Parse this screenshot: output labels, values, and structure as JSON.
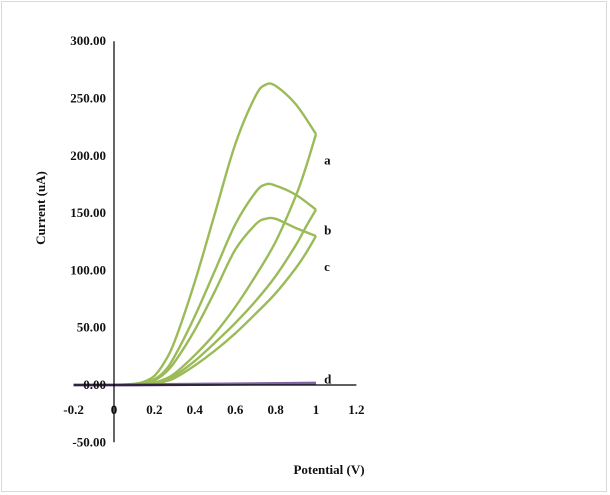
{
  "chart_data": {
    "type": "line",
    "title": "",
    "xlabel": "Potential (V)",
    "ylabel": "Current  (uA)",
    "xlim": [
      -0.2,
      1.2
    ],
    "ylim": [
      -50,
      300
    ],
    "x_ticks": [
      "-0.2",
      "0",
      "0.2",
      "0.4",
      "0.6",
      "0.8",
      "1",
      "1.2"
    ],
    "x_tick_values": [
      -0.2,
      0,
      0.2,
      0.4,
      0.6,
      0.8,
      1.0,
      1.2
    ],
    "y_ticks": [
      "300.00",
      "250.00",
      "200.00",
      "150.00",
      "100.00",
      "50.00",
      "0.00",
      "-50.00"
    ],
    "y_tick_values": [
      300,
      250,
      200,
      150,
      100,
      50,
      0,
      -50
    ],
    "grid": false,
    "series": [
      {
        "name": "a",
        "color": "#9bbb59",
        "forward": {
          "x": [
            0.0,
            0.1,
            0.15,
            0.2,
            0.25,
            0.3,
            0.4,
            0.5,
            0.6,
            0.7,
            0.75,
            0.8,
            0.9,
            1.0
          ],
          "y": [
            0,
            1,
            3,
            8,
            20,
            38,
            90,
            150,
            210,
            252,
            262,
            261,
            245,
            219
          ]
        },
        "reverse": {
          "x": [
            1.0,
            0.95,
            0.9,
            0.8,
            0.7,
            0.6,
            0.5,
            0.4,
            0.3,
            0.25,
            0.2,
            0.15,
            0.1,
            0.0
          ],
          "y": [
            219,
            190,
            165,
            125,
            95,
            68,
            45,
            26,
            10,
            5,
            2,
            1,
            0,
            0
          ]
        }
      },
      {
        "name": "b",
        "color": "#9bbb59",
        "forward": {
          "x": [
            0.0,
            0.1,
            0.15,
            0.2,
            0.25,
            0.3,
            0.4,
            0.5,
            0.6,
            0.7,
            0.75,
            0.8,
            0.9,
            1.0
          ],
          "y": [
            0,
            0.5,
            2,
            5,
            12,
            25,
            60,
            100,
            140,
            168,
            175,
            174,
            166,
            153
          ]
        },
        "reverse": {
          "x": [
            1.0,
            0.95,
            0.9,
            0.8,
            0.7,
            0.6,
            0.5,
            0.4,
            0.3,
            0.25,
            0.2,
            0.15,
            0.1,
            0.0
          ],
          "y": [
            153,
            138,
            122,
            95,
            73,
            54,
            37,
            21,
            8,
            4,
            1.5,
            0.5,
            0,
            0
          ]
        }
      },
      {
        "name": "c",
        "color": "#9bbb59",
        "forward": {
          "x": [
            0.0,
            0.1,
            0.15,
            0.2,
            0.25,
            0.3,
            0.4,
            0.5,
            0.6,
            0.7,
            0.75,
            0.8,
            0.9,
            1.0
          ],
          "y": [
            0,
            0.5,
            1.5,
            4,
            10,
            20,
            48,
            82,
            118,
            140,
            145,
            145,
            137,
            130
          ]
        },
        "reverse": {
          "x": [
            1.0,
            0.95,
            0.9,
            0.8,
            0.7,
            0.6,
            0.5,
            0.4,
            0.3,
            0.25,
            0.2,
            0.15,
            0.1,
            0.0
          ],
          "y": [
            130,
            115,
            102,
            80,
            62,
            45,
            30,
            17,
            6,
            3,
            1,
            0.5,
            0,
            0
          ]
        }
      },
      {
        "name": "d",
        "color": "#8064a2",
        "forward": {
          "x": [
            -0.2,
            0.0,
            0.5,
            1.0
          ],
          "y": [
            0,
            0,
            0.8,
            1.6
          ]
        },
        "reverse": {
          "x": [
            1.0,
            0.5,
            0.0,
            -0.2
          ],
          "y": [
            1.2,
            0.6,
            0,
            0
          ]
        }
      }
    ],
    "curve_labels": [
      {
        "text": "a",
        "x": 1.07,
        "y": 196
      },
      {
        "text": "b",
        "x": 1.07,
        "y": 135
      },
      {
        "text": "c",
        "x": 1.07,
        "y": 103
      },
      {
        "text": "d",
        "x": 1.07,
        "y": 5
      }
    ]
  }
}
